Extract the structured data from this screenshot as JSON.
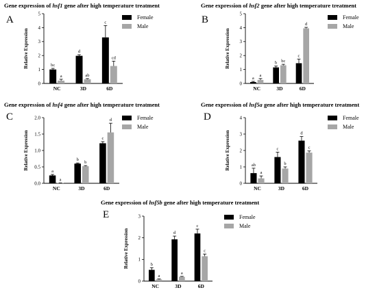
{
  "legend": {
    "female": "Female",
    "male": "Male"
  },
  "colors": {
    "female": "#000000",
    "male": "#a6a6a6"
  },
  "chart_data": [
    {
      "type": "bar",
      "panel": "A",
      "title": {
        "pre": "Gene expression of ",
        "gene": "hsf1",
        "post": " gene after high temperature treatment"
      },
      "ylabel": "Relative Expression",
      "ylim": [
        0,
        5
      ],
      "yticks": [
        "0",
        "1",
        "2",
        "3",
        "4",
        "5"
      ],
      "categories": [
        "NC",
        "3D",
        "6D"
      ],
      "series": [
        {
          "name": "Female",
          "values": [
            1.0,
            1.98,
            3.3
          ],
          "errors": [
            0.08,
            0.08,
            0.85
          ],
          "letters": [
            "bc",
            "d",
            "c"
          ]
        },
        {
          "name": "Male",
          "values": [
            0.2,
            0.3,
            1.25
          ],
          "errors": [
            0.1,
            0.05,
            0.35
          ],
          "letters": [
            "a",
            "ab",
            "cd"
          ]
        }
      ]
    },
    {
      "type": "bar",
      "panel": "B",
      "title": {
        "pre": "Gene expression of ",
        "gene": "hsf2",
        "post": " gene after high temperature treatment"
      },
      "ylabel": "Relative Expression",
      "ylim": [
        0,
        5
      ],
      "yticks": [
        "0",
        "1",
        "2",
        "3",
        "4",
        "5"
      ],
      "categories": [
        "NC",
        "3D",
        "6D"
      ],
      "series": [
        {
          "name": "Female",
          "values": [
            0.1,
            1.15,
            1.45
          ],
          "errors": [
            0.05,
            0.1,
            0.3
          ],
          "letters": [
            "a",
            "b",
            "c"
          ]
        },
        {
          "name": "Male",
          "values": [
            0.25,
            1.3,
            3.95
          ],
          "errors": [
            0.1,
            0.07,
            0.07
          ],
          "letters": [
            "a",
            "bc",
            "d"
          ]
        }
      ]
    },
    {
      "type": "bar",
      "panel": "C",
      "title": {
        "pre": "Gene expression of ",
        "gene": "hsf4",
        "post": " gene after high temperature treatment"
      },
      "ylabel": "Relative Expression",
      "ylim": [
        0,
        2.0
      ],
      "yticks": [
        "0.0",
        "0.5",
        "1.0",
        "1.5",
        "2.0"
      ],
      "categories": [
        "NC",
        "3D",
        "6D"
      ],
      "series": [
        {
          "name": "Female",
          "values": [
            0.24,
            0.6,
            1.22
          ],
          "errors": [
            0.03,
            0.02,
            0.05
          ],
          "letters": [
            "a",
            "b",
            "c"
          ]
        },
        {
          "name": "Male",
          "values": [
            0.01,
            0.52,
            1.55
          ],
          "errors": [
            0.005,
            0.02,
            0.28
          ],
          "letters": [
            "a",
            "b",
            "d"
          ]
        }
      ]
    },
    {
      "type": "bar",
      "panel": "D",
      "title": {
        "pre": "Gene expression of ",
        "gene": "hsf5a",
        "post": " gene after high temperature treatment"
      },
      "ylabel": "Relative Expression",
      "ylim": [
        0,
        4
      ],
      "yticks": [
        "0",
        "1",
        "2",
        "3",
        "4"
      ],
      "categories": [
        "NC",
        "3D",
        "6D"
      ],
      "series": [
        {
          "name": "Female",
          "values": [
            0.62,
            1.6,
            2.6
          ],
          "errors": [
            0.3,
            0.3,
            0.25
          ],
          "letters": [
            "ab",
            "c",
            "d"
          ]
        },
        {
          "name": "Male",
          "values": [
            0.3,
            0.9,
            1.87
          ],
          "errors": [
            0.15,
            0.1,
            0.1
          ],
          "letters": [
            "a",
            "b",
            "c"
          ]
        }
      ]
    },
    {
      "type": "bar",
      "panel": "E",
      "title": {
        "pre": "Gene expression of ",
        "gene": "hsf5b",
        "post": " gene after high temperature treatment"
      },
      "ylabel": "Relative Expression",
      "ylim": [
        0,
        3
      ],
      "yticks": [
        "0",
        "1",
        "2",
        "3"
      ],
      "categories": [
        "NC",
        "3D",
        "6D"
      ],
      "series": [
        {
          "name": "Female",
          "values": [
            0.52,
            1.93,
            2.2
          ],
          "errors": [
            0.1,
            0.15,
            0.2
          ],
          "letters": [
            "b",
            "d",
            "c"
          ]
        },
        {
          "name": "Male",
          "values": [
            0.08,
            0.2,
            1.15
          ],
          "errors": [
            0.02,
            0.02,
            0.1
          ],
          "letters": [
            "a",
            "a",
            "c"
          ]
        }
      ]
    }
  ]
}
